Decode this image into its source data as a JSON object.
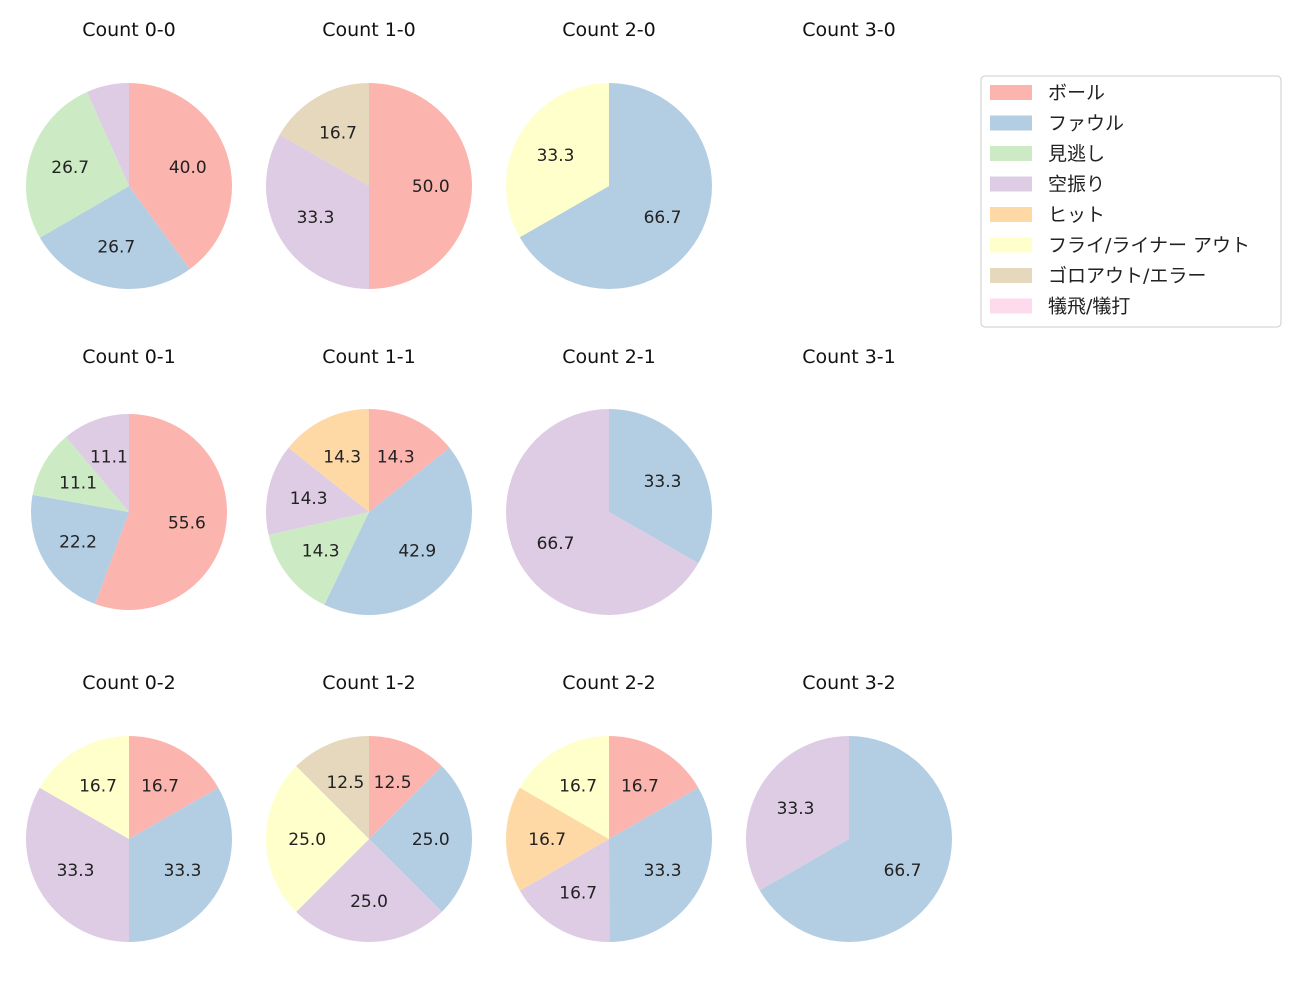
{
  "legend": {
    "title": "",
    "entries": [
      {
        "label": "ボール",
        "color": "#fbb4ae"
      },
      {
        "label": "ファウル",
        "color": "#b3cde3"
      },
      {
        "label": "見逃し",
        "color": "#ccebc5"
      },
      {
        "label": "空振り",
        "color": "#decbe4"
      },
      {
        "label": "ヒット",
        "color": "#fed9a6"
      },
      {
        "label": "フライ/ライナー アウト",
        "color": "#ffffcc"
      },
      {
        "label": "ゴロアウト/エラー",
        "color": "#e5d8bd"
      },
      {
        "label": "犠飛/犠打",
        "color": "#fddaec"
      }
    ]
  },
  "chart_data": [
    {
      "type": "pie",
      "title": "Count 0-0",
      "slices": [
        {
          "category": "ボール",
          "value": 40.0
        },
        {
          "category": "ファウル",
          "value": 26.7
        },
        {
          "category": "見逃し",
          "value": 26.7
        },
        {
          "category": "空振り",
          "value": 6.7
        }
      ],
      "labels": [
        "40.0",
        "26.7",
        "26.7",
        null
      ]
    },
    {
      "type": "pie",
      "title": "Count 1-0",
      "slices": [
        {
          "category": "ボール",
          "value": 50.0
        },
        {
          "category": "空振り",
          "value": 33.3
        },
        {
          "category": "ゴロアウト/エラー",
          "value": 16.7
        }
      ],
      "labels": [
        "50.0",
        "33.3",
        "16.7"
      ]
    },
    {
      "type": "pie",
      "title": "Count 2-0",
      "slices": [
        {
          "category": "ファウル",
          "value": 66.7
        },
        {
          "category": "フライ/ライナー アウト",
          "value": 33.3
        }
      ],
      "labels": [
        "66.7",
        "33.3"
      ]
    },
    {
      "type": "pie",
      "title": "Count 3-0",
      "slices": [],
      "labels": []
    },
    {
      "type": "pie",
      "title": "Count 0-1",
      "slices": [
        {
          "category": "ボール",
          "value": 55.6
        },
        {
          "category": "ファウル",
          "value": 22.2
        },
        {
          "category": "見逃し",
          "value": 11.1
        },
        {
          "category": "空振り",
          "value": 11.1
        }
      ],
      "labels": [
        "55.6",
        "22.2",
        "11.1",
        "11.1"
      ]
    },
    {
      "type": "pie",
      "title": "Count 1-1",
      "slices": [
        {
          "category": "ボール",
          "value": 14.3
        },
        {
          "category": "ファウル",
          "value": 42.9
        },
        {
          "category": "見逃し",
          "value": 14.3
        },
        {
          "category": "空振り",
          "value": 14.3
        },
        {
          "category": "ヒット",
          "value": 14.3
        }
      ],
      "labels": [
        "14.3",
        "42.9",
        "14.3",
        "14.3",
        "14.3"
      ]
    },
    {
      "type": "pie",
      "title": "Count 2-1",
      "slices": [
        {
          "category": "ファウル",
          "value": 33.3
        },
        {
          "category": "空振り",
          "value": 66.7
        }
      ],
      "labels": [
        "33.3",
        "66.7"
      ]
    },
    {
      "type": "pie",
      "title": "Count 3-1",
      "slices": [],
      "labels": []
    },
    {
      "type": "pie",
      "title": "Count 0-2",
      "slices": [
        {
          "category": "ボール",
          "value": 16.7
        },
        {
          "category": "ファウル",
          "value": 33.3
        },
        {
          "category": "空振り",
          "value": 33.3
        },
        {
          "category": "フライ/ライナー アウト",
          "value": 16.7
        }
      ],
      "labels": [
        "16.7",
        "33.3",
        "33.3",
        "16.7"
      ]
    },
    {
      "type": "pie",
      "title": "Count 1-2",
      "slices": [
        {
          "category": "ボール",
          "value": 12.5
        },
        {
          "category": "ファウル",
          "value": 25.0
        },
        {
          "category": "空振り",
          "value": 25.0
        },
        {
          "category": "フライ/ライナー アウト",
          "value": 25.0
        },
        {
          "category": "ゴロアウト/エラー",
          "value": 12.5
        }
      ],
      "labels": [
        "12.5",
        "25.0",
        "25.0",
        "25.0",
        "12.5"
      ]
    },
    {
      "type": "pie",
      "title": "Count 2-2",
      "slices": [
        {
          "category": "ボール",
          "value": 16.7
        },
        {
          "category": "ファウル",
          "value": 33.3
        },
        {
          "category": "空振り",
          "value": 16.7
        },
        {
          "category": "ヒット",
          "value": 16.7
        },
        {
          "category": "フライ/ライナー アウト",
          "value": 16.7
        }
      ],
      "labels": [
        "16.7",
        "33.3",
        "16.7",
        "16.7",
        "16.7"
      ]
    },
    {
      "type": "pie",
      "title": "Count 3-2",
      "slices": [
        {
          "category": "ファウル",
          "value": 66.7
        },
        {
          "category": "空振り",
          "value": 33.3
        }
      ],
      "labels": [
        "66.7",
        "33.3"
      ]
    }
  ]
}
